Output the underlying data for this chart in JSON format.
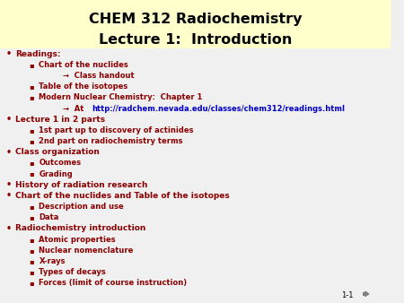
{
  "title_line1": "CHEM 312 Radiochemistry",
  "title_line2": "Lecture 1:  Introduction",
  "title_bg_color": "#ffffcc",
  "slide_bg_color": "#f0f0f0",
  "text_color": "#8B0000",
  "link_color": "#0000CC",
  "slide_number": "1-1",
  "content": [
    {
      "level": 1,
      "text": "Readings:",
      "bold": true
    },
    {
      "level": 2,
      "text": "Chart of the nuclides",
      "bold": true
    },
    {
      "level": 3,
      "text": "→  Class handout",
      "bold": true
    },
    {
      "level": 2,
      "text": "Table of the isotopes",
      "bold": true
    },
    {
      "level": 2,
      "text": "Modern Nuclear Chemistry:  Chapter 1",
      "bold": true
    },
    {
      "level": 3,
      "text": "→  At http://radchem.nevada.edu/classes/chem312/readings.html",
      "bold": true,
      "link": true
    },
    {
      "level": 1,
      "text": "Lecture 1 in 2 parts",
      "bold": true
    },
    {
      "level": 2,
      "text": "1st part up to discovery of actinides",
      "bold": true
    },
    {
      "level": 2,
      "text": "2nd part on radiochemistry terms",
      "bold": true
    },
    {
      "level": 1,
      "text": "Class organization",
      "bold": true
    },
    {
      "level": 2,
      "text": "Outcomes",
      "bold": true
    },
    {
      "level": 2,
      "text": "Grading",
      "bold": true
    },
    {
      "level": 1,
      "text": "History of radiation research",
      "bold": true
    },
    {
      "level": 1,
      "text": "Chart of the nuclides and Table of the isotopes",
      "bold": true
    },
    {
      "level": 2,
      "text": "Description and use",
      "bold": true
    },
    {
      "level": 2,
      "text": "Data",
      "bold": true
    },
    {
      "level": 1,
      "text": "Radiochemistry introduction",
      "bold": true
    },
    {
      "level": 2,
      "text": "Atomic properties",
      "bold": true
    },
    {
      "level": 2,
      "text": "Nuclear nomenclature",
      "bold": true
    },
    {
      "level": 2,
      "text": "X-rays",
      "bold": true
    },
    {
      "level": 2,
      "text": "Types of decays",
      "bold": true
    },
    {
      "level": 2,
      "text": "Forces (limit of course instruction)",
      "bold": true
    }
  ]
}
